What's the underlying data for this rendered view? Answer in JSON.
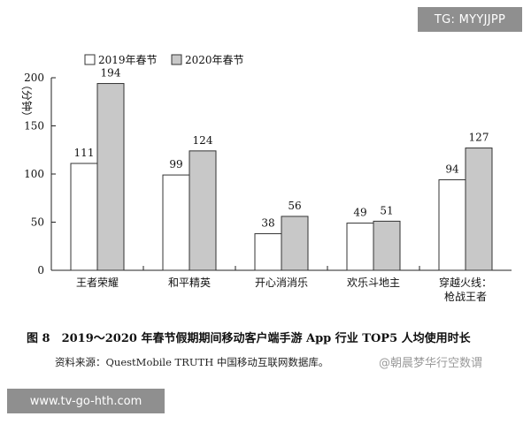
{
  "watermarks": {
    "top_right": "TG: MYYJJPP",
    "bottom_left": "www.tv-go-hth.com",
    "overlay": "@朝晨梦华行空数谓"
  },
  "caption": "图 8　2019～2020 年春节假期期间移动客户端手游 App 行业 TOP5 人均使用时长",
  "source": "资料来源：QuestMobile TRUTH 中国移动互联网数据库。",
  "chart_data": {
    "type": "bar",
    "ylabel": "（分钟）",
    "ylim": [
      0,
      200
    ],
    "yticks": [
      0,
      50,
      100,
      150,
      200
    ],
    "legend_position": "top-left",
    "categories": [
      "王者荣耀",
      "和平精英",
      "开心消消乐",
      "欢乐斗地主",
      "穿越火线：\n枪战王者"
    ],
    "series": [
      {
        "name": "2019年春节",
        "values": [
          111,
          99,
          38,
          49,
          94
        ],
        "color": "#ffffff"
      },
      {
        "name": "2020年春节",
        "values": [
          194,
          124,
          56,
          51,
          127
        ],
        "color": "#c8c8c8"
      }
    ]
  }
}
